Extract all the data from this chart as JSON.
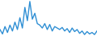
{
  "values": [
    5.5,
    4.0,
    6.5,
    4.5,
    7.0,
    5.0,
    8.0,
    5.5,
    9.5,
    6.0,
    13.0,
    8.5,
    15.0,
    9.0,
    11.0,
    7.5,
    7.0,
    6.0,
    7.5,
    5.5,
    7.2,
    5.0,
    6.5,
    6.0,
    5.5,
    6.2,
    5.0,
    5.8,
    4.5,
    6.0,
    4.8,
    5.5,
    4.2,
    5.0,
    3.8,
    4.8,
    4.0,
    4.5,
    3.8,
    5.0
  ],
  "line_color": "#2f8fd4",
  "bg_color": "#ffffff",
  "linewidth": 1.0
}
